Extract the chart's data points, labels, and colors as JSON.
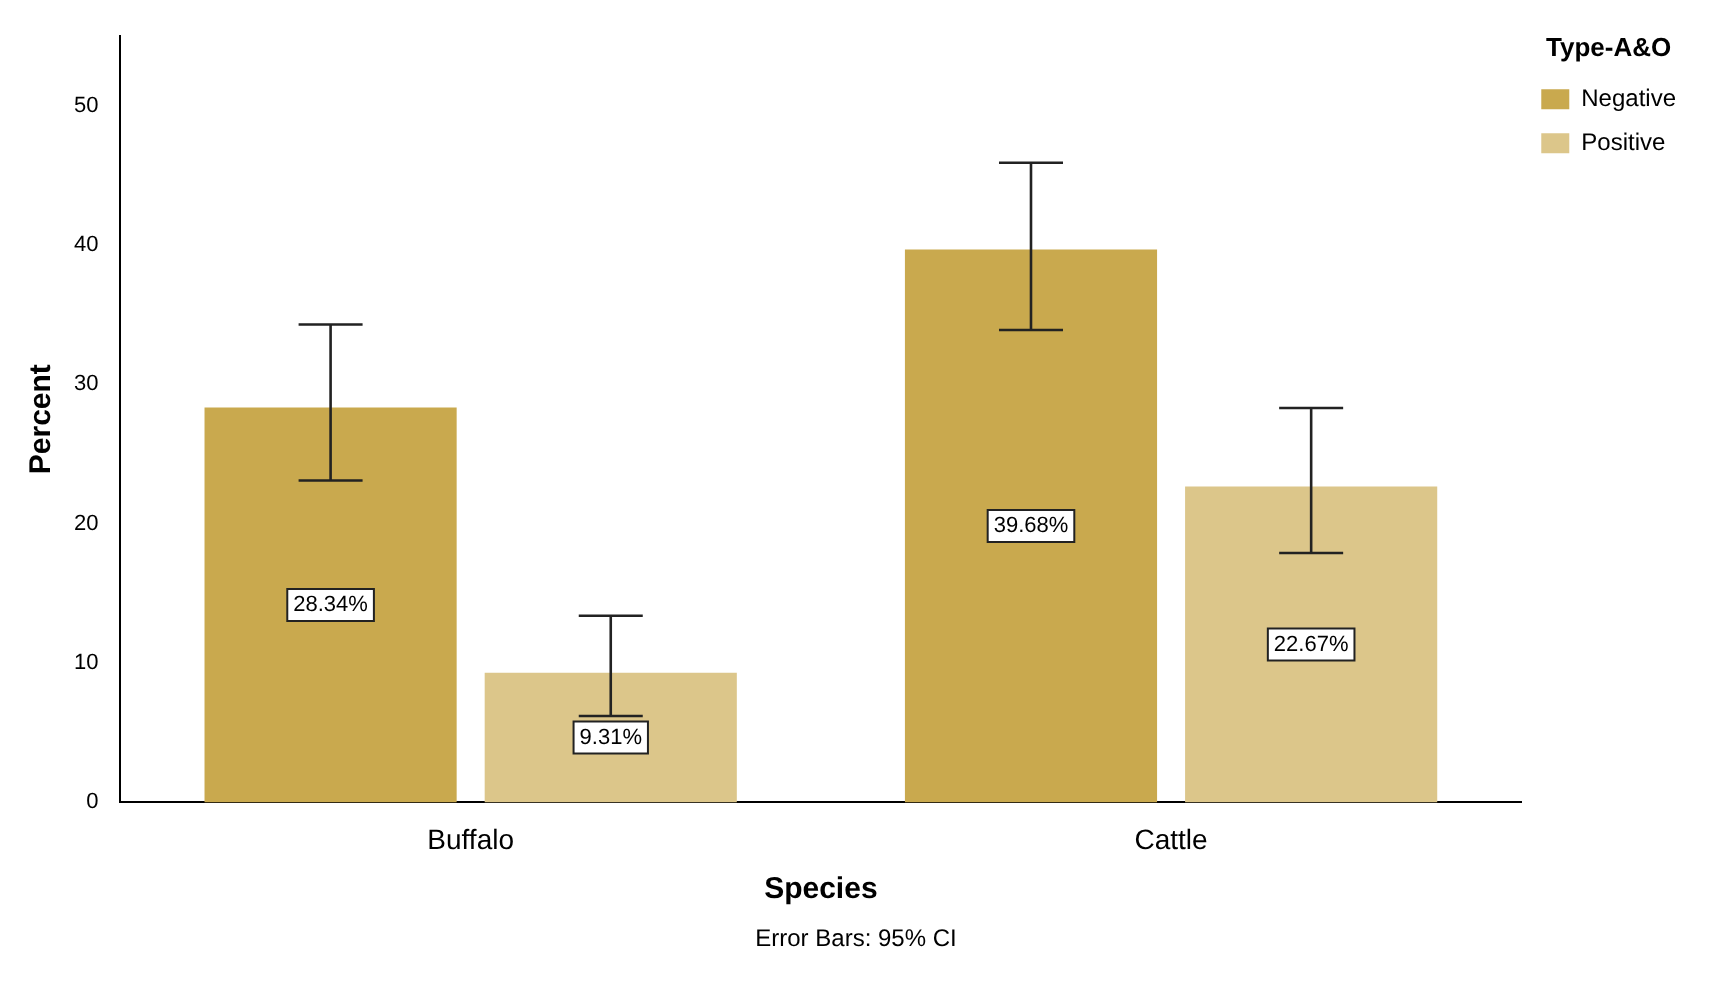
{
  "chart_data": {
    "type": "bar",
    "xlabel": "Species",
    "ylabel": "Percent",
    "legend_title": "Type-A&O",
    "categories": [
      "Buffalo",
      "Cattle"
    ],
    "series": [
      {
        "name": "Negative",
        "color": "#c9a94e",
        "values": [
          28.34,
          39.68
        ],
        "errors": [
          [
            23.1,
            34.3
          ],
          [
            33.9,
            45.9
          ]
        ],
        "value_labels": [
          "28.34%",
          "39.68%"
        ]
      },
      {
        "name": "Positive",
        "color": "#dcc68a",
        "values": [
          9.31,
          22.67
        ],
        "errors": [
          [
            6.2,
            13.4
          ],
          [
            17.9,
            28.3
          ]
        ],
        "value_labels": [
          "9.31%",
          "22.67%"
        ]
      }
    ],
    "ylim": [
      0,
      55
    ],
    "yticks": [
      0,
      10,
      20,
      30,
      40,
      50
    ],
    "grid": false,
    "legend": "top right",
    "annotations": [
      "Error Bars: 95% CI"
    ]
  }
}
